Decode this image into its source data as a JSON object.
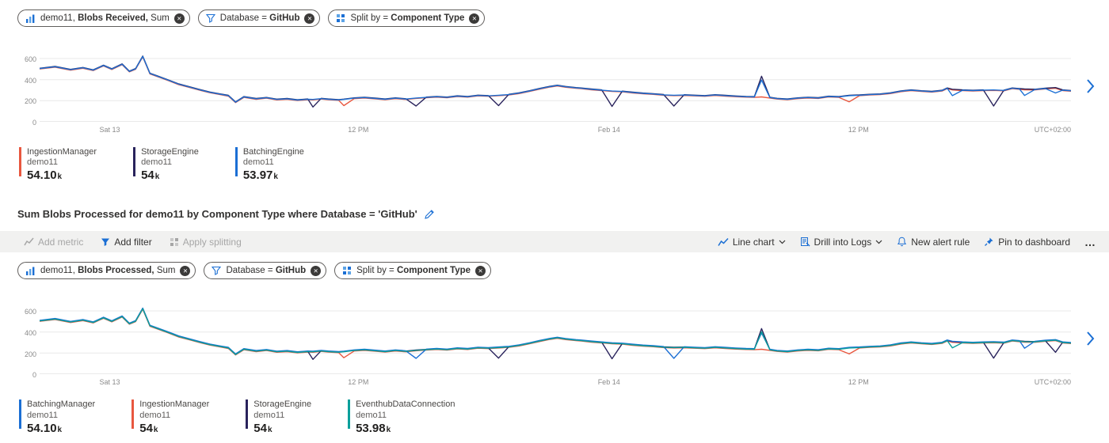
{
  "colors": {
    "blue": "#1b6fd4",
    "navy": "#29235c",
    "red": "#e8573f",
    "teal": "#0b9f9b",
    "toolbar_bg": "#f1f1f0",
    "grid": "#e8e8e8"
  },
  "charts": [
    {
      "pills": [
        {
          "prefix": "demo11, ",
          "bold": "Blobs Received,",
          "suffix": " Sum"
        },
        {
          "prefix": "Database = ",
          "bold": "GitHub",
          "suffix": ""
        },
        {
          "prefix": "Split by = ",
          "bold": "Component Type",
          "suffix": ""
        }
      ],
      "legend": [
        {
          "name": "IngestionManager",
          "resource": "demo11",
          "value": "54.10",
          "unit": "k",
          "color": "#e8573f"
        },
        {
          "name": "StorageEngine",
          "resource": "demo11",
          "value": "54",
          "unit": "k",
          "color": "#29235c"
        },
        {
          "name": "BatchingEngine",
          "resource": "demo11",
          "value": "53.97",
          "unit": "k",
          "color": "#1b6fd4"
        }
      ]
    },
    {
      "pills": [
        {
          "prefix": "demo11, ",
          "bold": "Blobs Processed,",
          "suffix": " Sum"
        },
        {
          "prefix": "Database = ",
          "bold": "GitHub",
          "suffix": ""
        },
        {
          "prefix": "Split by = ",
          "bold": "Component Type",
          "suffix": ""
        }
      ],
      "legend": [
        {
          "name": "BatchingManager",
          "resource": "demo11",
          "value": "54.10",
          "unit": "k",
          "color": "#1b6fd4"
        },
        {
          "name": "IngestionManager",
          "resource": "demo11",
          "value": "54",
          "unit": "k",
          "color": "#e8573f"
        },
        {
          "name": "StorageEngine",
          "resource": "demo11",
          "value": "54",
          "unit": "k",
          "color": "#29235c"
        },
        {
          "name": "EventhubDataConnection",
          "resource": "demo11",
          "value": "53.98",
          "unit": "k",
          "color": "#0b9f9b"
        }
      ]
    }
  ],
  "section_title": "Sum Blobs Processed for demo11 by Component Type where Database = 'GitHub'",
  "toolbar": {
    "add_metric": "Add metric",
    "add_filter": "Add filter",
    "apply_splitting": "Apply splitting",
    "line_chart": "Line chart",
    "drill_into_logs": "Drill into Logs",
    "new_alert_rule": "New alert rule",
    "pin_to_dashboard": "Pin to dashboard",
    "more": "…"
  },
  "chart_data": [
    {
      "type": "line",
      "metric": "demo11, Blobs Received, Sum",
      "filter": "Database = GitHub",
      "split_by": "Component Type",
      "ylim": [
        0,
        660
      ],
      "y_grid": [
        600,
        400,
        200,
        0
      ],
      "x_ticks": [
        {
          "label": "Sat 13",
          "pos": 6.8
        },
        {
          "label": "12 PM",
          "pos": 30.9
        },
        {
          "label": "Feb 14",
          "pos": 55.2
        },
        {
          "label": "12 PM",
          "pos": 79.4
        }
      ],
      "timezone_label": "UTC+02:00",
      "base": [
        [
          0,
          505
        ],
        [
          1.5,
          522
        ],
        [
          3,
          494
        ],
        [
          4.2,
          512
        ],
        [
          5.2,
          490
        ],
        [
          6.2,
          534
        ],
        [
          7,
          500
        ],
        [
          8,
          546
        ],
        [
          8.7,
          478
        ],
        [
          9.3,
          502
        ],
        [
          10,
          620
        ],
        [
          10.7,
          458
        ],
        [
          11.5,
          430
        ],
        [
          12.5,
          394
        ],
        [
          13.5,
          356
        ],
        [
          14.5,
          330
        ],
        [
          15.5,
          304
        ],
        [
          16.5,
          280
        ],
        [
          17.5,
          262
        ],
        [
          18.3,
          248
        ],
        [
          19,
          186
        ],
        [
          19.8,
          236
        ],
        [
          21,
          218
        ],
        [
          22,
          228
        ],
        [
          23,
          212
        ],
        [
          24,
          218
        ],
        [
          25,
          206
        ],
        [
          26,
          214
        ],
        [
          26.5,
          212
        ],
        [
          27.3,
          220
        ],
        [
          28,
          214
        ],
        [
          29,
          208
        ],
        [
          29.5,
          212
        ],
        [
          30.5,
          224
        ],
        [
          31.5,
          230
        ],
        [
          32.5,
          222
        ],
        [
          33.5,
          214
        ],
        [
          34.5,
          224
        ],
        [
          35.5,
          216
        ],
        [
          36.5,
          226
        ],
        [
          37.5,
          232
        ],
        [
          38.5,
          238
        ],
        [
          39.5,
          232
        ],
        [
          40.5,
          244
        ],
        [
          41.5,
          238
        ],
        [
          42.5,
          250
        ],
        [
          43.5,
          246
        ],
        [
          44.5,
          252
        ],
        [
          45.5,
          258
        ],
        [
          46.5,
          272
        ],
        [
          47.5,
          292
        ],
        [
          48.5,
          314
        ],
        [
          49.5,
          334
        ],
        [
          50.2,
          344
        ],
        [
          51,
          332
        ],
        [
          52,
          322
        ],
        [
          52.5,
          318
        ],
        [
          53.5,
          308
        ],
        [
          54.5,
          300
        ],
        [
          55.5,
          292
        ],
        [
          56.5,
          288
        ],
        [
          57.5,
          278
        ],
        [
          58.5,
          270
        ],
        [
          59.5,
          264
        ],
        [
          60.5,
          256
        ],
        [
          61.5,
          252
        ],
        [
          62.5,
          254
        ],
        [
          63.5,
          250
        ],
        [
          64.5,
          246
        ],
        [
          65.5,
          254
        ],
        [
          66.5,
          248
        ],
        [
          67.5,
          242
        ],
        [
          68.5,
          238
        ],
        [
          69.3,
          236
        ],
        [
          70,
          240
        ],
        [
          70.8,
          230
        ],
        [
          71.5,
          220
        ],
        [
          72.5,
          214
        ],
        [
          73.5,
          224
        ],
        [
          74.5,
          230
        ],
        [
          75.5,
          226
        ],
        [
          76.5,
          240
        ],
        [
          77.5,
          236
        ],
        [
          78.5,
          248
        ],
        [
          79.5,
          252
        ],
        [
          80.5,
          258
        ],
        [
          81.5,
          262
        ],
        [
          82.5,
          272
        ],
        [
          83.5,
          290
        ],
        [
          84.5,
          300
        ],
        [
          85.5,
          292
        ],
        [
          86.5,
          286
        ],
        [
          87.5,
          296
        ],
        [
          88,
          318
        ],
        [
          88.5,
          306
        ],
        [
          89.5,
          300
        ],
        [
          90.5,
          296
        ],
        [
          91.5,
          300
        ],
        [
          92.5,
          302
        ],
        [
          93.5,
          298
        ],
        [
          94.3,
          318
        ],
        [
          95,
          312
        ],
        [
          95.5,
          308
        ],
        [
          96.5,
          306
        ],
        [
          97.5,
          316
        ],
        [
          98.5,
          322
        ],
        [
          99.2,
          300
        ],
        [
          100,
          294
        ]
      ],
      "series": [
        {
          "name": "IngestionManager",
          "color": "#e8573f",
          "total": "54.10k",
          "offset": -4,
          "overrides": [
            [
              29.5,
              154
            ],
            [
              78.5,
              190
            ]
          ]
        },
        {
          "name": "StorageEngine",
          "color": "#29235c",
          "total": "54k",
          "offset": 3,
          "overrides": [
            [
              26.5,
              140
            ],
            [
              36.5,
              150
            ],
            [
              44.5,
              154
            ],
            [
              55.5,
              146
            ],
            [
              61.5,
              150
            ],
            [
              70,
              432
            ],
            [
              92.5,
              150
            ]
          ]
        },
        {
          "name": "BatchingEngine",
          "color": "#1b6fd4",
          "total": "53.97k",
          "offset": 0,
          "overrides": [
            [
              70,
              396
            ],
            [
              88.5,
              248
            ],
            [
              95.5,
              250
            ],
            [
              98.5,
              274
            ]
          ]
        }
      ]
    },
    {
      "type": "line",
      "metric": "demo11, Blobs Processed, Sum",
      "filter": "Database = GitHub",
      "split_by": "Component Type",
      "ylim": [
        0,
        660
      ],
      "y_grid": [
        600,
        400,
        200,
        0
      ],
      "x_ticks": [
        {
          "label": "Sat 13",
          "pos": 6.8
        },
        {
          "label": "12 PM",
          "pos": 30.9
        },
        {
          "label": "Feb 14",
          "pos": 55.2
        },
        {
          "label": "12 PM",
          "pos": 79.4
        }
      ],
      "timezone_label": "UTC+02:00",
      "base": [
        [
          0,
          505
        ],
        [
          1.5,
          522
        ],
        [
          3,
          494
        ],
        [
          4.2,
          512
        ],
        [
          5.2,
          490
        ],
        [
          6.2,
          534
        ],
        [
          7,
          500
        ],
        [
          8,
          546
        ],
        [
          8.7,
          478
        ],
        [
          9.3,
          502
        ],
        [
          10,
          620
        ],
        [
          10.7,
          458
        ],
        [
          11.5,
          430
        ],
        [
          12.5,
          394
        ],
        [
          13.5,
          356
        ],
        [
          14.5,
          330
        ],
        [
          15.5,
          304
        ],
        [
          16.5,
          280
        ],
        [
          17.5,
          262
        ],
        [
          18.3,
          248
        ],
        [
          19,
          186
        ],
        [
          19.8,
          236
        ],
        [
          21,
          218
        ],
        [
          22,
          228
        ],
        [
          23,
          212
        ],
        [
          24,
          218
        ],
        [
          25,
          206
        ],
        [
          26,
          214
        ],
        [
          26.5,
          212
        ],
        [
          27.3,
          220
        ],
        [
          28,
          214
        ],
        [
          29,
          208
        ],
        [
          29.5,
          212
        ],
        [
          30.5,
          224
        ],
        [
          31.5,
          230
        ],
        [
          32.5,
          222
        ],
        [
          33.5,
          214
        ],
        [
          34.5,
          224
        ],
        [
          35.5,
          216
        ],
        [
          36.5,
          226
        ],
        [
          37.5,
          232
        ],
        [
          38.5,
          238
        ],
        [
          39.5,
          232
        ],
        [
          40.5,
          244
        ],
        [
          41.5,
          238
        ],
        [
          42.5,
          250
        ],
        [
          43.5,
          246
        ],
        [
          44.5,
          252
        ],
        [
          45.5,
          258
        ],
        [
          46.5,
          272
        ],
        [
          47.5,
          292
        ],
        [
          48.5,
          314
        ],
        [
          49.5,
          334
        ],
        [
          50.2,
          344
        ],
        [
          51,
          332
        ],
        [
          52,
          322
        ],
        [
          52.5,
          318
        ],
        [
          53.5,
          308
        ],
        [
          54.5,
          300
        ],
        [
          55.5,
          292
        ],
        [
          56.5,
          288
        ],
        [
          57.5,
          278
        ],
        [
          58.5,
          270
        ],
        [
          59.5,
          264
        ],
        [
          60.5,
          256
        ],
        [
          61.5,
          252
        ],
        [
          62.5,
          254
        ],
        [
          63.5,
          250
        ],
        [
          64.5,
          246
        ],
        [
          65.5,
          254
        ],
        [
          66.5,
          248
        ],
        [
          67.5,
          242
        ],
        [
          68.5,
          238
        ],
        [
          69.3,
          236
        ],
        [
          70,
          240
        ],
        [
          70.8,
          230
        ],
        [
          71.5,
          220
        ],
        [
          72.5,
          214
        ],
        [
          73.5,
          224
        ],
        [
          74.5,
          230
        ],
        [
          75.5,
          226
        ],
        [
          76.5,
          240
        ],
        [
          77.5,
          236
        ],
        [
          78.5,
          248
        ],
        [
          79.5,
          252
        ],
        [
          80.5,
          258
        ],
        [
          81.5,
          262
        ],
        [
          82.5,
          272
        ],
        [
          83.5,
          290
        ],
        [
          84.5,
          300
        ],
        [
          85.5,
          292
        ],
        [
          86.5,
          286
        ],
        [
          87.5,
          296
        ],
        [
          88,
          318
        ],
        [
          88.5,
          306
        ],
        [
          89.5,
          300
        ],
        [
          90.5,
          296
        ],
        [
          91.5,
          300
        ],
        [
          92.5,
          302
        ],
        [
          93.5,
          298
        ],
        [
          94.3,
          318
        ],
        [
          95,
          312
        ],
        [
          95.5,
          308
        ],
        [
          96.5,
          306
        ],
        [
          97.5,
          316
        ],
        [
          98.5,
          322
        ],
        [
          99.2,
          300
        ],
        [
          100,
          294
        ]
      ],
      "series": [
        {
          "name": "IngestionManager",
          "color": "#e8573f",
          "total": "54k",
          "offset": -4,
          "overrides": [
            [
              29.5,
              156
            ],
            [
              78.5,
              192
            ]
          ]
        },
        {
          "name": "StorageEngine",
          "color": "#29235c",
          "total": "54k",
          "offset": 3,
          "overrides": [
            [
              26.5,
              140
            ],
            [
              44.5,
              152
            ],
            [
              55.5,
              146
            ],
            [
              70,
              432
            ],
            [
              92.5,
              152
            ],
            [
              98.5,
              208
            ]
          ]
        },
        {
          "name": "BatchingManager",
          "color": "#1b6fd4",
          "total": "54.10k",
          "offset": 6,
          "overrides": [
            [
              36.5,
              150
            ],
            [
              61.5,
              150
            ],
            [
              70,
              390
            ],
            [
              95.5,
              246
            ]
          ]
        },
        {
          "name": "EventhubDataConnection",
          "color": "#0b9f9b",
          "total": "53.98k",
          "offset": 0,
          "overrides": [
            [
              19,
              186
            ],
            [
              70,
              402
            ],
            [
              88.5,
              250
            ]
          ]
        }
      ]
    }
  ]
}
